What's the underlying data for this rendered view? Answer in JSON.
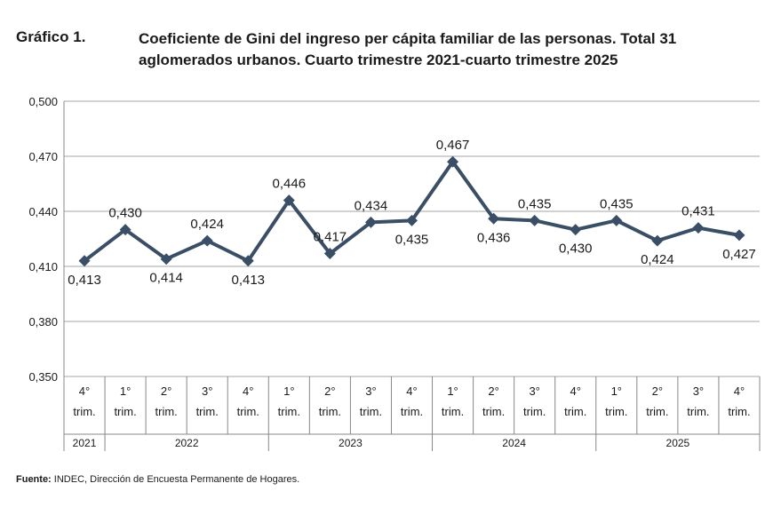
{
  "header": {
    "label": "Gráfico 1.",
    "title_line1": "Coeficiente de Gini del ingreso per cápita familiar de las personas. Total 31",
    "title_line2": "aglomerados urbanos. Cuarto trimestre 2021-cuarto trimestre 2025"
  },
  "source": {
    "prefix": "Fuente:",
    "text": "INDEC, Dirección de Encuesta Permanente de Hogares."
  },
  "chart_data": {
    "type": "line",
    "title": "Coeficiente de Gini del ingreso per cápita familiar de las personas. Total 31 aglomerados urbanos. Cuarto trimestre 2021-cuarto trimestre 2025",
    "ylim": [
      0.35,
      0.5
    ],
    "yticks": [
      "0,350",
      "0,380",
      "0,410",
      "0,440",
      "0,470",
      "0,500"
    ],
    "ytick_values": [
      0.35,
      0.38,
      0.41,
      0.44,
      0.47,
      0.5
    ],
    "categories": [
      {
        "q": "4°",
        "t": "trim."
      },
      {
        "q": "1°",
        "t": "trim."
      },
      {
        "q": "2°",
        "t": "trim."
      },
      {
        "q": "3°",
        "t": "trim."
      },
      {
        "q": "4°",
        "t": "trim."
      },
      {
        "q": "1°",
        "t": "trim."
      },
      {
        "q": "2°",
        "t": "trim."
      },
      {
        "q": "3°",
        "t": "trim."
      },
      {
        "q": "4°",
        "t": "trim."
      },
      {
        "q": "1°",
        "t": "trim."
      },
      {
        "q": "2°",
        "t": "trim."
      },
      {
        "q": "3°",
        "t": "trim."
      },
      {
        "q": "4°",
        "t": "trim."
      },
      {
        "q": "1°",
        "t": "trim."
      },
      {
        "q": "2°",
        "t": "trim."
      },
      {
        "q": "3°",
        "t": "trim."
      },
      {
        "q": "4°",
        "t": "trim."
      }
    ],
    "years": [
      {
        "label": "2021",
        "start": 0,
        "end": 0
      },
      {
        "label": "2022",
        "start": 1,
        "end": 4
      },
      {
        "label": "2023",
        "start": 5,
        "end": 8
      },
      {
        "label": "2024",
        "start": 9,
        "end": 12
      },
      {
        "label": "2025",
        "start": 13,
        "end": 16
      }
    ],
    "values": [
      0.413,
      0.43,
      0.414,
      0.424,
      0.413,
      0.446,
      0.417,
      0.434,
      0.435,
      0.467,
      0.436,
      0.435,
      0.43,
      0.435,
      0.424,
      0.431,
      0.427
    ],
    "labels": [
      "0,413",
      "0,430",
      "0,414",
      "0,424",
      "0,413",
      "0,446",
      "0,417",
      "0,434",
      "0,435",
      "0,467",
      "0,436",
      "0,435",
      "0,430",
      "0,435",
      "0,424",
      "0,431",
      "0,427"
    ],
    "label_pos": [
      "below",
      "above",
      "below",
      "above",
      "below",
      "above",
      "above",
      "above",
      "below",
      "above",
      "below",
      "above",
      "below",
      "above",
      "below",
      "above",
      "below"
    ],
    "grid": true,
    "legend": "none",
    "line_color": "#3a4f66",
    "grid_color": "#b8b8b8"
  }
}
